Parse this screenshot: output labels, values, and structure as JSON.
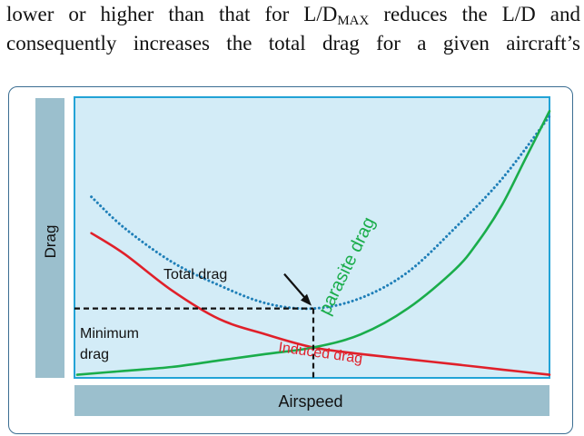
{
  "paragraph": {
    "line1_prefix": "lower or higher than that for L/D",
    "line1_sub": "MAX",
    "line1_suffix": " reduces the L/D and",
    "line2": "consequently increases the total drag for a given aircraft’s"
  },
  "chart_data": {
    "type": "line",
    "title": "",
    "xlabel": "Airspeed",
    "ylabel": "Drag",
    "xlim": [
      0,
      10
    ],
    "ylim": [
      0,
      10
    ],
    "grid": false,
    "series": [
      {
        "name": "Total drag",
        "style": "dotted",
        "color": "#1f7fb8",
        "x": [
          0.3,
          1.0,
          2.0,
          3.0,
          4.0,
          5.0,
          6.0,
          7.0,
          8.0,
          9.0,
          10.0
        ],
        "y": [
          6.9,
          5.7,
          4.4,
          3.5,
          2.8,
          2.6,
          3.0,
          4.0,
          5.7,
          7.6,
          10.0
        ]
      },
      {
        "name": "Induced drag",
        "style": "solid",
        "color": "#e0202a",
        "x": [
          0.3,
          1.0,
          2.0,
          3.0,
          4.0,
          5.0,
          6.0,
          7.0,
          8.0,
          9.0,
          10.0
        ],
        "y": [
          5.5,
          4.7,
          3.3,
          2.2,
          1.6,
          1.1,
          0.85,
          0.65,
          0.45,
          0.25,
          0.05
        ]
      },
      {
        "name": "parasite drag",
        "style": "solid",
        "color": "#1aad4b",
        "x": [
          0.0,
          1.0,
          2.0,
          3.0,
          4.0,
          5.0,
          6.0,
          7.0,
          8.0,
          8.5,
          9.0,
          9.5,
          10.0
        ],
        "y": [
          0.05,
          0.2,
          0.35,
          0.6,
          0.85,
          1.1,
          1.6,
          2.6,
          4.1,
          5.2,
          6.6,
          8.4,
          10.2
        ]
      }
    ],
    "annotations": [
      {
        "text": "Total drag",
        "x": 5.0,
        "y": 2.6
      },
      {
        "text": "Minimum",
        "x": 5.0,
        "y": 1.1
      },
      {
        "text": "drag",
        "x": 5.0,
        "y": 1.1
      }
    ],
    "minimum_point": {
      "x": 5.0,
      "y": 2.6
    },
    "crossover_point": {
      "x": 5.0,
      "y": 1.1
    }
  },
  "colors": {
    "plot_bg": "#d3ecf7",
    "plot_border": "#22a3d6",
    "axis_bar": "#9bbfcd",
    "frame_border": "#3b6e92",
    "dashed_line": "#111111"
  }
}
